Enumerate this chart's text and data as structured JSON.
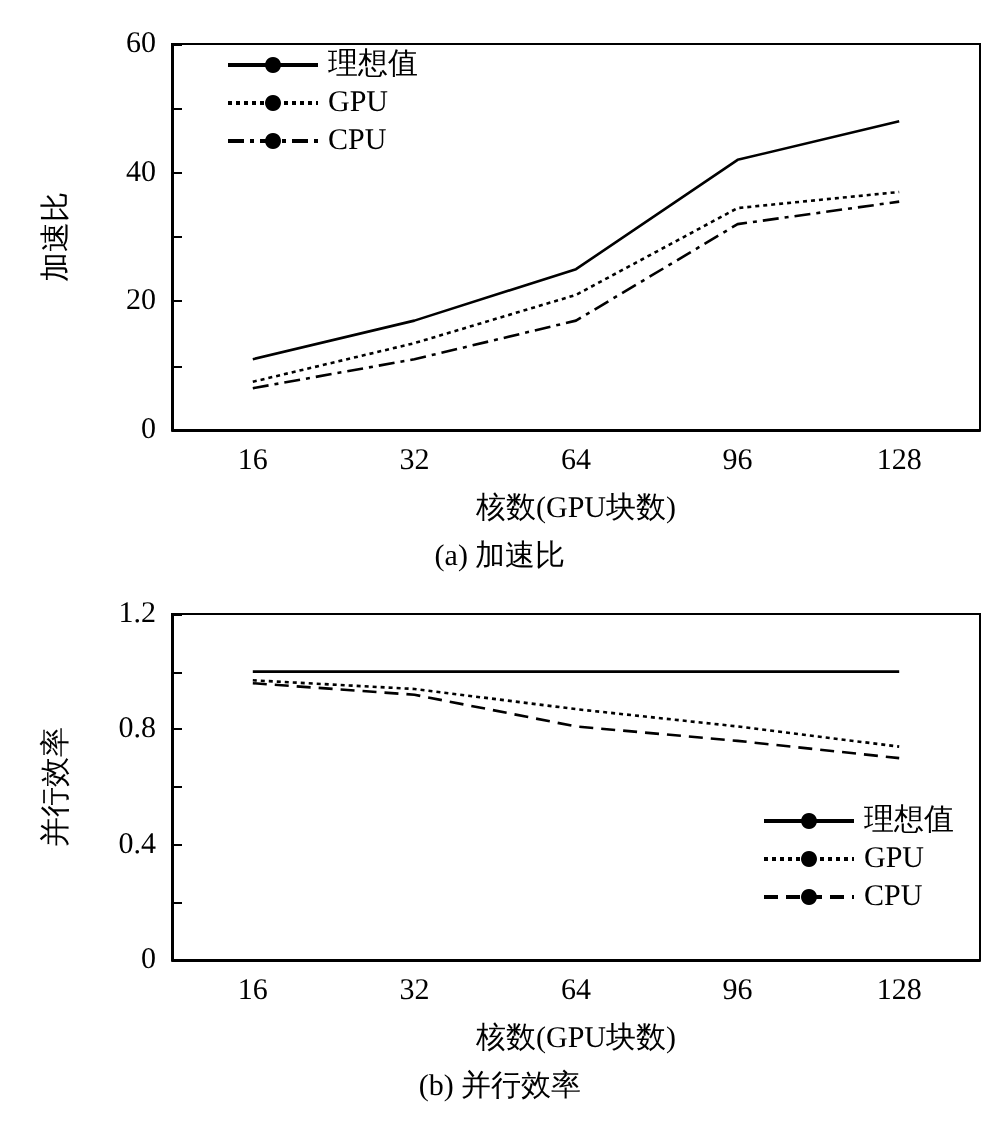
{
  "chart_data": [
    {
      "type": "line",
      "title": "(a) 加速比",
      "xlabel": "核数(GPU块数)",
      "ylabel": "加速比",
      "categories": [
        "16",
        "32",
        "64",
        "96",
        "128"
      ],
      "ylim": [
        0,
        60
      ],
      "yticks": [
        0,
        {
          "value": 10,
          "label": null
        },
        20,
        {
          "value": 30,
          "label": null
        },
        40,
        {
          "value": 50,
          "label": null
        },
        60
      ],
      "series": [
        {
          "name": "理想值",
          "color": "#000000",
          "line_style": "solid",
          "values": [
            11,
            17,
            25,
            42,
            48
          ]
        },
        {
          "name": "GPU",
          "color": "#000000",
          "line_style": "dotted",
          "values": [
            7.5,
            13.5,
            21,
            34.5,
            37
          ]
        },
        {
          "name": "CPU",
          "color": "#000000",
          "line_style": "dashdot",
          "values": [
            6.5,
            11,
            17,
            32,
            35.5
          ]
        }
      ],
      "grid": false,
      "legend": "top left",
      "marker": "none"
    },
    {
      "type": "line",
      "title": "(b) 并行效率",
      "xlabel": "核数(GPU块数)",
      "ylabel": "并行效率",
      "categories": [
        "16",
        "32",
        "64",
        "96",
        "128"
      ],
      "ylim": [
        0,
        1.2
      ],
      "yticks": [
        0,
        {
          "value": 0.2,
          "label": null
        },
        0.4,
        {
          "value": 0.6,
          "label": null
        },
        0.8,
        {
          "value": 1.0,
          "label": null
        },
        1.2
      ],
      "series": [
        {
          "name": "理想值",
          "color": "#000000",
          "line_style": "solid",
          "values": [
            1.0,
            1.0,
            1.0,
            1.0,
            1.0
          ]
        },
        {
          "name": "GPU",
          "color": "#000000",
          "line_style": "dotted",
          "values": [
            0.97,
            0.94,
            0.87,
            0.81,
            0.74
          ]
        },
        {
          "name": "CPU",
          "color": "#000000",
          "line_style": "dashed",
          "values": [
            0.96,
            0.92,
            0.81,
            0.76,
            0.7
          ]
        }
      ],
      "grid": false,
      "legend": "right",
      "marker": "none"
    }
  ]
}
